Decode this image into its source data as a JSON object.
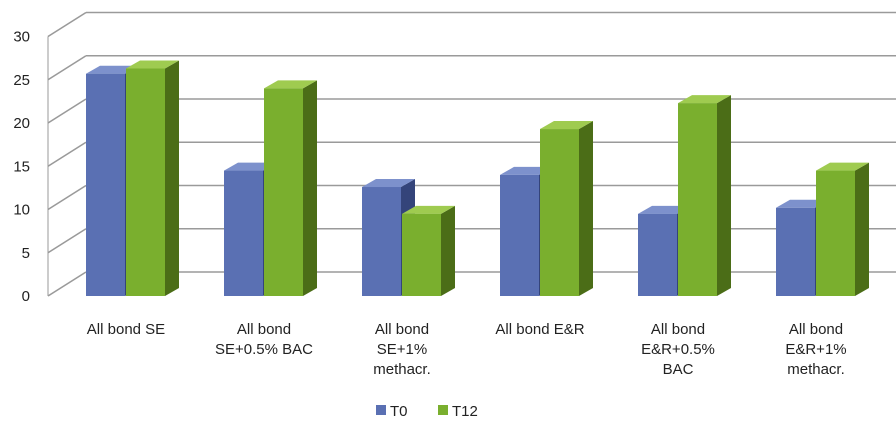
{
  "chart_data": {
    "type": "bar",
    "style": "3d-clustered-column",
    "categories": [
      [
        "All bond SE"
      ],
      [
        "All bond",
        "SE+0.5% BAC"
      ],
      [
        "All bond",
        "SE+1%",
        "methacr."
      ],
      [
        "All bond E&R"
      ],
      [
        "All bond",
        "E&R+0.5%",
        "BAC"
      ],
      [
        "All bond",
        "E&R+1%",
        "methacr."
      ]
    ],
    "series": [
      {
        "name": "T0",
        "values": [
          25.7,
          14.5,
          12.6,
          14.0,
          9.5,
          10.2
        ]
      },
      {
        "name": "T12",
        "values": [
          26.3,
          24.0,
          9.5,
          19.3,
          22.3,
          14.5
        ]
      }
    ],
    "y_ticks": [
      "0",
      "5",
      "10",
      "15",
      "20",
      "25",
      "30"
    ],
    "ylim": [
      0,
      30
    ],
    "grid": true,
    "legend_position": "bottom",
    "colors": {
      "T0": {
        "front": "#5a70b3",
        "side": "#34447a",
        "top": "#7d91cc"
      },
      "T12": {
        "front": "#7aaf2e",
        "side": "#4b6d17",
        "top": "#9fcb50"
      },
      "grid": "#9a9a9a",
      "floor": "#9a9a9a"
    }
  }
}
